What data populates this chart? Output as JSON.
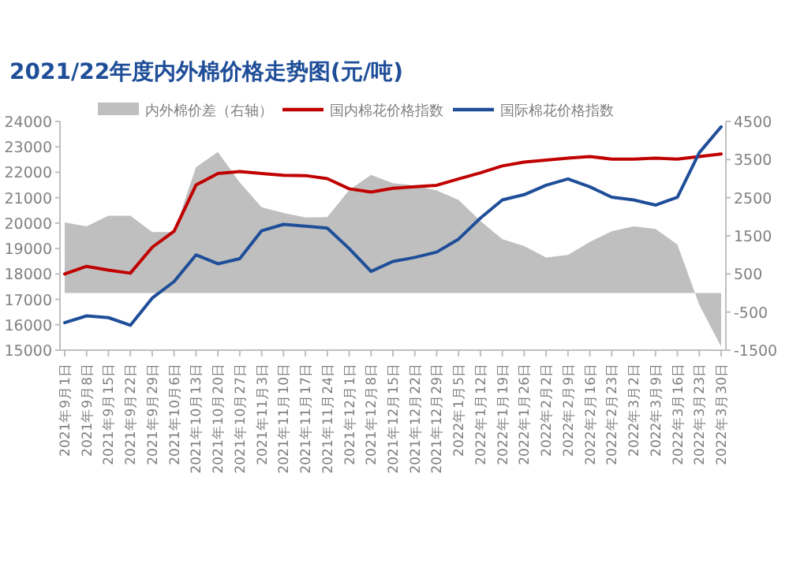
{
  "chart_data": {
    "type": "line",
    "title": "2021/22年度内外棉价格走势图(元/吨)",
    "categories": [
      "2021年9月1日",
      "2021年9月8日",
      "2021年9月15日",
      "2021年9月22日",
      "2021年9月29日",
      "2021年10月6日",
      "2021年10月13日",
      "2021年10月20日",
      "2021年10月27日",
      "2021年11月3日",
      "2021年11月10日",
      "2021年11月17日",
      "2021年11月24日",
      "2021年12月1日",
      "2021年12月8日",
      "2021年12月15日",
      "2021年12月22日",
      "2021年12月29日",
      "2022年1月5日",
      "2022年1月12日",
      "2022年1月19日",
      "2022年1月26日",
      "2022年2月2日",
      "2022年2月9日",
      "2022年2月16日",
      "2022年2月23日",
      "2022年3月2日",
      "2022年3月9日",
      "2022年3月16日",
      "2022年3月23日",
      "2022年3月30日"
    ],
    "series": [
      {
        "name": "内外棉价差（右轴）",
        "type": "area",
        "axis": "y2",
        "color": "#bfbfbf",
        "values": [
          1850,
          1750,
          2030,
          2030,
          1600,
          1600,
          3300,
          3700,
          2900,
          2250,
          2100,
          1980,
          1990,
          2700,
          3100,
          2880,
          2820,
          2690,
          2440,
          1890,
          1410,
          1230,
          930,
          1000,
          1340,
          1620,
          1750,
          1680,
          1270,
          -310,
          -1410
        ]
      },
      {
        "name": "国内棉花价格指数",
        "color": "#c00000",
        "values": [
          18000,
          18300,
          18150,
          18030,
          19050,
          19680,
          21500,
          21950,
          22030,
          21950,
          21880,
          21870,
          21750,
          21350,
          21220,
          21370,
          21430,
          21490,
          21740,
          21980,
          22250,
          22400,
          22480,
          22560,
          22620,
          22520,
          22520,
          22560,
          22520,
          22620,
          22720
        ]
      },
      {
        "name": "国际棉花价格指数",
        "color": "#1f4e99",
        "values": [
          16080,
          16350,
          16280,
          15980,
          17050,
          17700,
          18750,
          18400,
          18600,
          19700,
          19950,
          19880,
          19800,
          19000,
          18100,
          18490,
          18650,
          18860,
          19370,
          20200,
          20910,
          21120,
          21490,
          21740,
          21430,
          21020,
          20910,
          20710,
          21020,
          22770,
          23790
        ]
      }
    ],
    "ylim": [
      15000,
      24000
    ],
    "yticks": [
      15000,
      16000,
      17000,
      18000,
      19000,
      20000,
      21000,
      22000,
      23000,
      24000
    ],
    "y2lim": [
      -1500,
      4500
    ],
    "y2ticks": [
      -1500,
      -500,
      500,
      1500,
      2500,
      3500,
      4500
    ],
    "legend": "top"
  }
}
